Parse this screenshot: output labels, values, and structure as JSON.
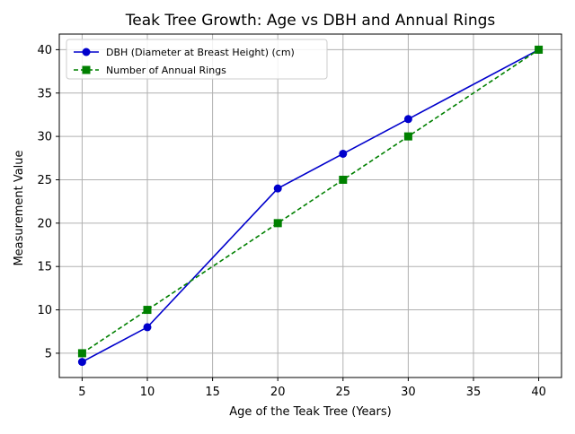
{
  "chart_data": {
    "type": "line",
    "title": "Teak Tree Growth: Age vs DBH and Annual Rings",
    "xlabel": "Age of the Teak Tree (Years)",
    "ylabel": "Measurement Value",
    "xlim": [
      3.25,
      41.75
    ],
    "ylim": [
      2.2,
      41.8
    ],
    "xticks": [
      5,
      10,
      15,
      20,
      25,
      30,
      35,
      40
    ],
    "yticks": [
      5,
      10,
      15,
      20,
      25,
      30,
      35,
      40
    ],
    "grid": true,
    "legend_position": "top-left",
    "x": [
      5,
      10,
      20,
      25,
      30,
      40
    ],
    "series": [
      {
        "name": "DBH (Diameter at Breast Height) (cm)",
        "values": [
          4,
          8,
          24,
          28,
          32,
          40
        ],
        "color": "#0000cc",
        "marker": "circle",
        "line_style": "solid"
      },
      {
        "name": "Number of Annual Rings",
        "values": [
          5,
          10,
          20,
          25,
          30,
          40
        ],
        "color": "#008000",
        "marker": "square",
        "line_style": "dashed"
      }
    ]
  }
}
